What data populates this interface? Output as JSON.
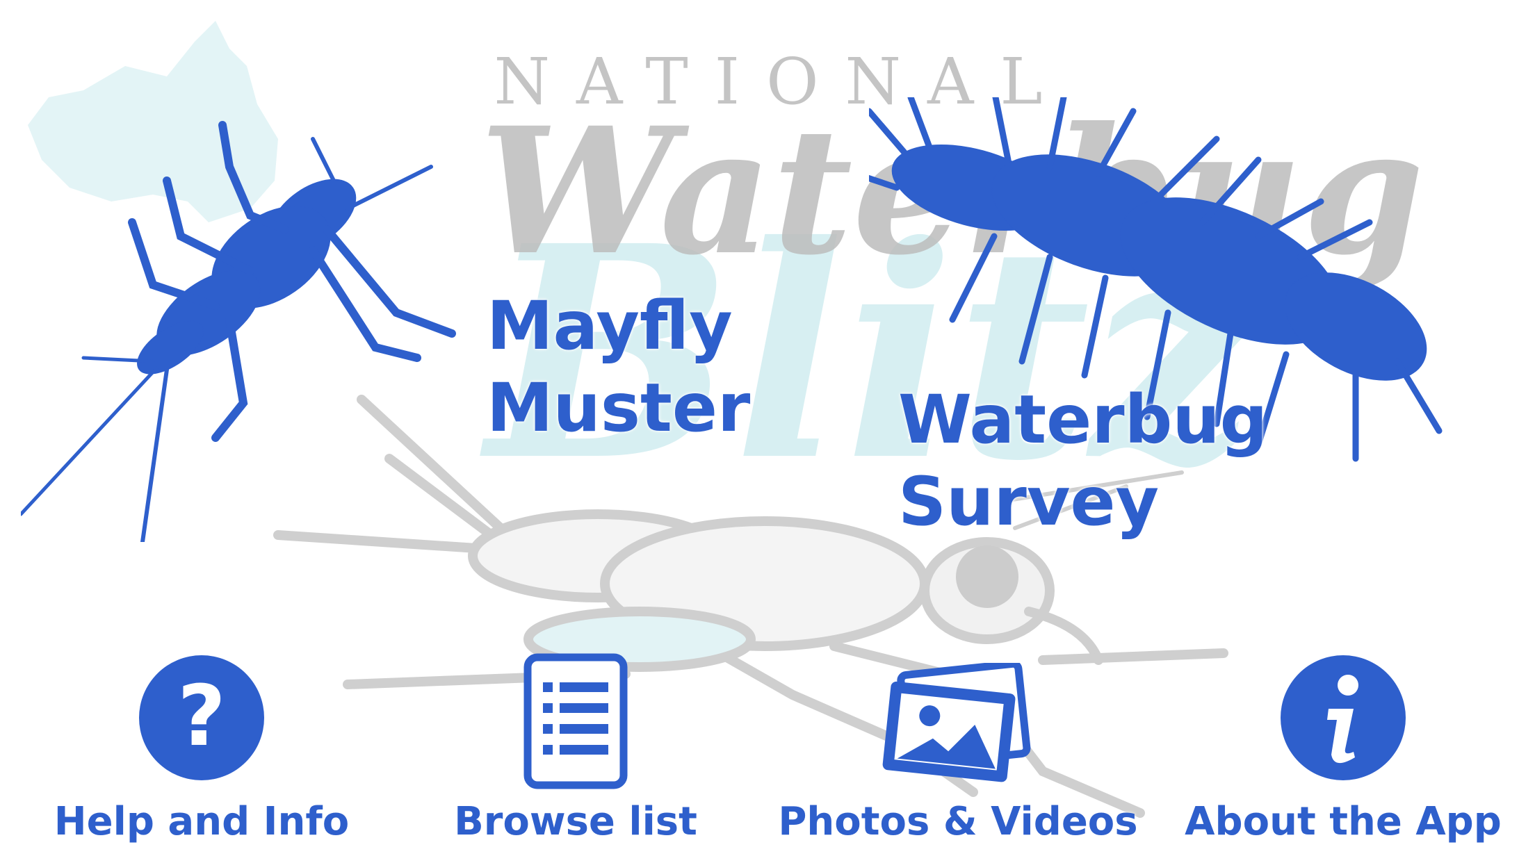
{
  "branding": {
    "national": "NATIONAL",
    "waterbug": "Waterbug",
    "blitz": "Blitz"
  },
  "surveys": {
    "mayfly": {
      "line1": "Mayfly",
      "line2": "Muster",
      "illustration_icon": "mayfly-nymph-icon"
    },
    "waterbug": {
      "line1": "Waterbug",
      "line2": "Survey",
      "illustration_icon": "hellgrammite-larva-icon"
    }
  },
  "nav": {
    "help": {
      "label": "Help and Info",
      "icon": "question-circle-icon"
    },
    "browse": {
      "label": "Browse list",
      "icon": "list-document-icon"
    },
    "photos": {
      "label": "Photos & Videos",
      "icon": "photos-icon"
    },
    "about": {
      "label": "About the App",
      "icon": "info-circle-icon"
    }
  },
  "colors": {
    "accent_blue": "#2e5fcc",
    "watermark_grey": "#c4c4c4",
    "watermark_cyan": "#d3eef1"
  }
}
